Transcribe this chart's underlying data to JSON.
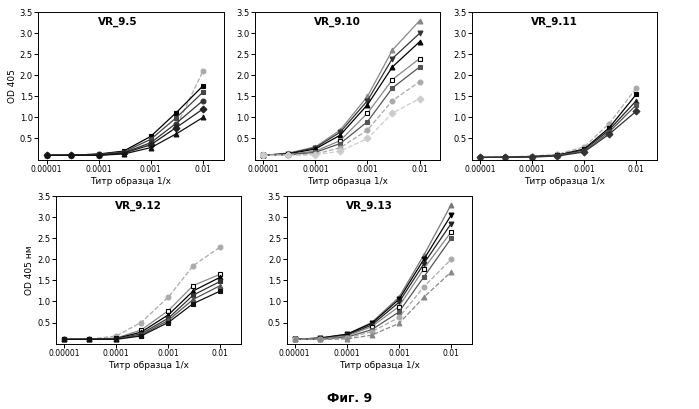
{
  "panels": [
    {
      "name": "VR_9.5",
      "ylabel": "OD 405",
      "xlabel": "Титр образца 1/x",
      "series": [
        {
          "marker": "o",
          "color": "#aaaaaa",
          "ls": "--",
          "mec": "#aaaaaa",
          "values": [
            0.1,
            0.1,
            0.13,
            0.18,
            0.35,
            0.75,
            2.1
          ]
        },
        {
          "marker": "s",
          "color": "#000000",
          "ls": "-",
          "mec": "#000000",
          "values": [
            0.1,
            0.1,
            0.13,
            0.2,
            0.55,
            1.1,
            1.75
          ]
        },
        {
          "marker": "s",
          "color": "#444444",
          "ls": "-",
          "mec": "#444444",
          "values": [
            0.1,
            0.1,
            0.12,
            0.18,
            0.48,
            0.98,
            1.6
          ]
        },
        {
          "marker": "o",
          "color": "#333333",
          "ls": "-",
          "mec": "#333333",
          "values": [
            0.1,
            0.1,
            0.11,
            0.16,
            0.4,
            0.85,
            1.4
          ]
        },
        {
          "marker": "D",
          "color": "#222222",
          "ls": "-",
          "mec": "#222222",
          "values": [
            0.1,
            0.1,
            0.1,
            0.15,
            0.35,
            0.75,
            1.2
          ]
        },
        {
          "marker": "^",
          "color": "#111111",
          "ls": "-",
          "mec": "#111111",
          "values": [
            0.1,
            0.1,
            0.1,
            0.13,
            0.28,
            0.6,
            1.0
          ]
        }
      ]
    },
    {
      "name": "VR_9.10",
      "ylabel": "",
      "xlabel": "Титр образца 1/x",
      "series": [
        {
          "marker": "^",
          "color": "#888888",
          "ls": "-",
          "mec": "#888888",
          "values": [
            0.1,
            0.15,
            0.3,
            0.7,
            1.5,
            2.6,
            3.3
          ]
        },
        {
          "marker": "v",
          "color": "#333333",
          "ls": "-",
          "mec": "#333333",
          "values": [
            0.1,
            0.14,
            0.28,
            0.65,
            1.4,
            2.4,
            3.0
          ]
        },
        {
          "marker": "^",
          "color": "#000000",
          "ls": "-",
          "mec": "#000000",
          "values": [
            0.1,
            0.13,
            0.25,
            0.58,
            1.3,
            2.2,
            2.8
          ]
        },
        {
          "marker": "s",
          "color": "#ffffff",
          "ls": "-",
          "mec": "#000000",
          "values": [
            0.1,
            0.12,
            0.2,
            0.45,
            1.1,
            1.9,
            2.4
          ]
        },
        {
          "marker": "s",
          "color": "#555555",
          "ls": "-",
          "mec": "#555555",
          "values": [
            0.1,
            0.11,
            0.17,
            0.38,
            0.9,
            1.7,
            2.2
          ]
        },
        {
          "marker": "o",
          "color": "#aaaaaa",
          "ls": "--",
          "mec": "#aaaaaa",
          "values": [
            0.1,
            0.1,
            0.13,
            0.28,
            0.7,
            1.4,
            1.85
          ]
        },
        {
          "marker": "D",
          "color": "#cccccc",
          "ls": "--",
          "mec": "#cccccc",
          "values": [
            0.1,
            0.1,
            0.11,
            0.2,
            0.5,
            1.1,
            1.45
          ]
        }
      ]
    },
    {
      "name": "VR_9.11",
      "ylabel": "",
      "xlabel": "Титр образца 1/x",
      "series": [
        {
          "marker": "o",
          "color": "#aaaaaa",
          "ls": "--",
          "mec": "#aaaaaa",
          "values": [
            0.05,
            0.06,
            0.08,
            0.12,
            0.3,
            0.85,
            1.7
          ]
        },
        {
          "marker": "s",
          "color": "#000000",
          "ls": "-",
          "mec": "#000000",
          "values": [
            0.05,
            0.05,
            0.07,
            0.1,
            0.25,
            0.75,
            1.55
          ]
        },
        {
          "marker": "^",
          "color": "#222222",
          "ls": "-",
          "mec": "#222222",
          "values": [
            0.05,
            0.05,
            0.07,
            0.1,
            0.23,
            0.7,
            1.4
          ]
        },
        {
          "marker": "s",
          "color": "#555555",
          "ls": "-",
          "mec": "#555555",
          "values": [
            0.05,
            0.05,
            0.06,
            0.09,
            0.2,
            0.65,
            1.3
          ]
        },
        {
          "marker": "D",
          "color": "#333333",
          "ls": "-",
          "mec": "#333333",
          "values": [
            0.05,
            0.05,
            0.06,
            0.08,
            0.18,
            0.6,
            1.15
          ]
        }
      ]
    },
    {
      "name": "VR_9.12",
      "ylabel": "OD 405 нм",
      "xlabel": "Титр образца 1/x",
      "series": [
        {
          "marker": "o",
          "color": "#aaaaaa",
          "ls": "--",
          "mec": "#aaaaaa",
          "values": [
            0.1,
            0.1,
            0.18,
            0.5,
            1.1,
            1.85,
            2.3
          ]
        },
        {
          "marker": "s",
          "color": "#ffffff",
          "ls": "-",
          "mec": "#000000",
          "values": [
            0.1,
            0.1,
            0.13,
            0.32,
            0.78,
            1.38,
            1.65
          ]
        },
        {
          "marker": "^",
          "color": "#000000",
          "ls": "-",
          "mec": "#000000",
          "values": [
            0.1,
            0.1,
            0.12,
            0.27,
            0.68,
            1.25,
            1.58
          ]
        },
        {
          "marker": "s",
          "color": "#333333",
          "ls": "-",
          "mec": "#333333",
          "values": [
            0.1,
            0.1,
            0.11,
            0.23,
            0.6,
            1.15,
            1.48
          ]
        },
        {
          "marker": "^",
          "color": "#555555",
          "ls": "-",
          "mec": "#555555",
          "values": [
            0.1,
            0.1,
            0.11,
            0.2,
            0.55,
            1.05,
            1.38
          ]
        },
        {
          "marker": "s",
          "color": "#111111",
          "ls": "-",
          "mec": "#111111",
          "values": [
            0.1,
            0.1,
            0.1,
            0.18,
            0.5,
            0.95,
            1.25
          ]
        }
      ]
    },
    {
      "name": "VR_9.13",
      "ylabel": "",
      "xlabel": "Титр образца 1/x",
      "series": [
        {
          "marker": "^",
          "color": "#777777",
          "ls": "-",
          "mec": "#777777",
          "values": [
            0.1,
            0.13,
            0.22,
            0.5,
            1.1,
            2.1,
            3.3
          ]
        },
        {
          "marker": "v",
          "color": "#000000",
          "ls": "-",
          "mec": "#000000",
          "values": [
            0.1,
            0.13,
            0.22,
            0.48,
            1.05,
            2.0,
            3.05
          ]
        },
        {
          "marker": "v",
          "color": "#222222",
          "ls": "-",
          "mec": "#222222",
          "values": [
            0.1,
            0.12,
            0.2,
            0.44,
            0.98,
            1.9,
            2.85
          ]
        },
        {
          "marker": "s",
          "color": "#ffffff",
          "ls": "-",
          "mec": "#000000",
          "values": [
            0.1,
            0.11,
            0.18,
            0.4,
            0.88,
            1.78,
            2.65
          ]
        },
        {
          "marker": "s",
          "color": "#555555",
          "ls": "-",
          "mec": "#555555",
          "values": [
            0.1,
            0.1,
            0.15,
            0.33,
            0.75,
            1.58,
            2.5
          ]
        },
        {
          "marker": "o",
          "color": "#aaaaaa",
          "ls": "--",
          "mec": "#aaaaaa",
          "values": [
            0.1,
            0.1,
            0.13,
            0.28,
            0.62,
            1.35,
            2.0
          ]
        },
        {
          "marker": "^",
          "color": "#888888",
          "ls": "--",
          "mec": "#888888",
          "values": [
            0.1,
            0.1,
            0.11,
            0.2,
            0.48,
            1.1,
            1.7
          ]
        }
      ]
    }
  ],
  "x_points": [
    1e-05,
    3e-05,
    0.0001,
    0.0003,
    0.001,
    0.003,
    0.01
  ],
  "xlim": [
    7e-06,
    0.025
  ],
  "ylim": [
    0,
    3.5
  ],
  "yticks": [
    0.5,
    1.0,
    1.5,
    2.0,
    2.5,
    3.0,
    3.5
  ],
  "xticks": [
    1e-05,
    0.0001,
    0.001,
    0.01
  ],
  "xtick_labels": [
    "0.00001",
    "0.0001",
    "0.001",
    "0.01"
  ],
  "background_color": "#ffffff",
  "fig_label": "Фиг. 9"
}
